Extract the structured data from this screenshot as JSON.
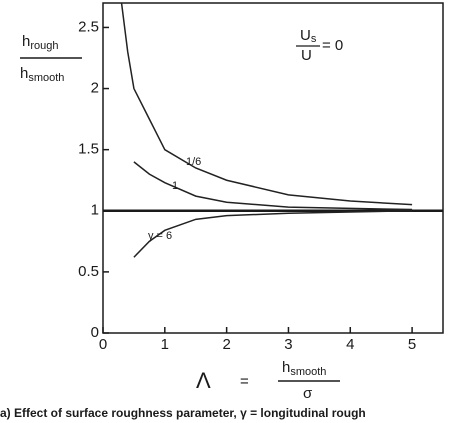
{
  "chart_data": {
    "type": "line",
    "y_label": {
      "numerator": "h",
      "numerator_sub": "rough",
      "denominator": "h",
      "denominator_sub": "smooth"
    },
    "x_label": {
      "symbol": "Λ",
      "equals": "=",
      "numerator": "h",
      "numerator_sub": "smooth",
      "denominator": "σ"
    },
    "annotation": {
      "numerator": "U",
      "numerator_sub": "s",
      "denominator": "U",
      "equals": "= 0"
    },
    "caption": "a)    Effect of surface roughness parameter, γ = longitudinal rough",
    "xlim": [
      0,
      5.5
    ],
    "xticks": [
      0,
      1,
      2,
      3,
      4,
      5
    ],
    "ylim": [
      0,
      2.7
    ],
    "yticks": [
      0,
      0.5,
      1,
      1.5,
      2,
      2.5
    ],
    "reference_line": 1,
    "series": [
      {
        "name": "1/6",
        "color": "#222222",
        "x": [
          0.3,
          0.4,
          0.5,
          0.75,
          1,
          1.5,
          2,
          3,
          4,
          5
        ],
        "values": [
          2.7,
          2.3,
          2.0,
          1.75,
          1.5,
          1.35,
          1.25,
          1.13,
          1.08,
          1.05
        ]
      },
      {
        "name": "1",
        "color": "#222222",
        "x": [
          0.5,
          0.75,
          1,
          1.5,
          2,
          3,
          4,
          5
        ],
        "values": [
          1.4,
          1.3,
          1.23,
          1.12,
          1.07,
          1.03,
          1.02,
          1.01
        ]
      },
      {
        "name": "γ = 6",
        "color": "#222222",
        "x": [
          0.5,
          0.75,
          1,
          1.5,
          2,
          3,
          4,
          5
        ],
        "values": [
          0.62,
          0.75,
          0.84,
          0.93,
          0.96,
          0.98,
          0.99,
          1.0
        ]
      }
    ]
  }
}
